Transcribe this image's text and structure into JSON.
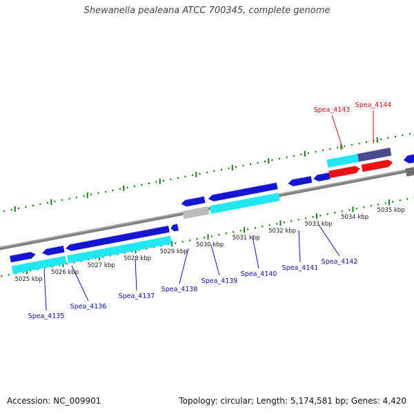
{
  "title": "Shewanella pealeana ATCC 700345, complete genome",
  "accession_text": "Accession: NC_009901",
  "summary_text": "Topology: circular; Length: 5,174,581 bp; Genes: 4,420",
  "colors": {
    "backbone": "#808080",
    "tick": "#1a7a1a",
    "tick_label": "#222222",
    "forward_gene": "#1414d2",
    "reverse_gene": "#0a0ad0",
    "cds_light": "#22e6f0",
    "grey_gene": "#bcbcbc",
    "dark_grey_gene": "#6e6e6e",
    "red_gene": "#ee1111",
    "purple_gene": "#4a4a8c",
    "label_blue": "#1010b0",
    "label_red": "#cc1010"
  },
  "scale": {
    "unit": "kbp",
    "ticks": [
      {
        "pos": 5025,
        "label": "5025 kbp"
      },
      {
        "pos": 5026,
        "label": "5026 kbp"
      },
      {
        "pos": 5027,
        "label": "5027 kbp"
      },
      {
        "pos": 5028,
        "label": "5028 kbp"
      },
      {
        "pos": 5029,
        "label": "5029 kbp"
      },
      {
        "pos": 5030,
        "label": "5030 kbp"
      },
      {
        "pos": 5031,
        "label": "5031 kbp"
      },
      {
        "pos": 5032,
        "label": "5032 kbp"
      },
      {
        "pos": 5033,
        "label": "5033 kbp"
      },
      {
        "pos": 5034,
        "label": "5034 kbp"
      },
      {
        "pos": 5035,
        "label": "5035 kbp"
      }
    ]
  },
  "genes": [
    {
      "name": "Spea_4135",
      "strand": "reverse",
      "start": 5024.62,
      "end": 5025.32,
      "label_color": "blue",
      "track": "lower"
    },
    {
      "name": "Spea_4136",
      "strand": "reverse",
      "start": 5025.5,
      "end": 5026.1,
      "label_color": "blue",
      "track": "lower"
    },
    {
      "name": "Spea_4137",
      "strand": "reverse",
      "start": 5026.1,
      "end": 5029.0,
      "label_color": "blue",
      "track": "lower"
    },
    {
      "name": "Spea_4138",
      "strand": "reverse",
      "start": 5029.1,
      "end": 5029.35,
      "label_color": "blue",
      "track": "lower"
    },
    {
      "name": "Spea_4139",
      "strand": "forward",
      "start": 5029.45,
      "end": 5030.2,
      "label_color": "blue",
      "track": "lower"
    },
    {
      "name": "Spea_4140",
      "strand": "forward",
      "start": 5030.2,
      "end": 5032.32,
      "label_color": "blue",
      "track": "lower"
    },
    {
      "name": "Spea_4141",
      "strand": "forward",
      "start": 5032.45,
      "end": 5033.2,
      "label_color": "blue",
      "track": "lower"
    },
    {
      "name": "Spea_4142",
      "strand": "forward",
      "start": 5033.3,
      "end": 5033.85,
      "label_color": "blue",
      "track": "lower"
    },
    {
      "name": "Spea_4143",
      "strand": "forward",
      "start": 5034.1,
      "end": 5035.1,
      "label_color": "red",
      "track": "upper"
    },
    {
      "name": "Spea_4144",
      "strand": "forward",
      "start": 5035.15,
      "end": 5036.4,
      "label_color": "red",
      "track": "upper"
    }
  ]
}
